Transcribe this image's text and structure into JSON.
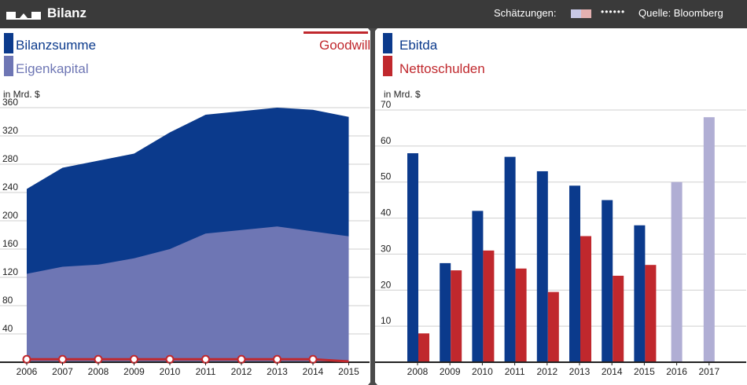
{
  "header": {
    "title": "Bilanz",
    "estimates_label": "Schätzungen:",
    "estimate_colors": [
      "#c8c8e6",
      "#e3b0b0"
    ],
    "dots": "••••••",
    "source": "Quelle: Bloomberg"
  },
  "colors": {
    "dark_blue": "#0b3a8c",
    "light_blue": "#6e76b4",
    "red": "#c0282d",
    "estimate_blue": "#b0aed4"
  },
  "left": {
    "legend": {
      "bilanzsumme": "Bilanzsumme",
      "eigenkapital": "Eigenkapital",
      "goodwill": "Goodwill"
    },
    "unit": "in Mrd. $"
  },
  "right": {
    "legend": {
      "ebitda": "Ebitda",
      "nettoschulden": "Nettoschulden"
    },
    "unit": "in Mrd. $"
  },
  "chart_data": [
    {
      "type": "area",
      "x": [
        "2006",
        "2007",
        "2008",
        "2009",
        "2010",
        "2011",
        "2012",
        "2013",
        "2014",
        "2015"
      ],
      "series": [
        {
          "name": "Bilanzsumme",
          "values": [
            245,
            275,
            285,
            295,
            325,
            350,
            355,
            360,
            357,
            347
          ]
        },
        {
          "name": "Eigenkapital",
          "values": [
            125,
            135,
            138,
            147,
            160,
            182,
            187,
            192,
            185,
            178
          ]
        },
        {
          "name": "Goodwill",
          "values": [
            3,
            3,
            3,
            3,
            3,
            3,
            3,
            3,
            3,
            0
          ]
        }
      ],
      "yticks": [
        40,
        80,
        120,
        160,
        200,
        240,
        280,
        320,
        360
      ],
      "ylim": [
        0,
        370
      ],
      "ylabel": "in Mrd. $"
    },
    {
      "type": "bar",
      "categories": [
        "2008",
        "2009",
        "2010",
        "2011",
        "2012",
        "2013",
        "2014",
        "2015",
        "2016",
        "2017"
      ],
      "series": [
        {
          "name": "Ebitda",
          "values": [
            58,
            27.5,
            42,
            57,
            53,
            49,
            45,
            38,
            50,
            68
          ],
          "estimate_from": "2016"
        },
        {
          "name": "Nettoschulden",
          "values": [
            8,
            25.5,
            31,
            26,
            19.5,
            35,
            24,
            27,
            null,
            null
          ]
        }
      ],
      "yticks": [
        10,
        20,
        30,
        40,
        50,
        60,
        70
      ],
      "ylim": [
        0,
        72
      ],
      "ylabel": "in Mrd. $"
    }
  ]
}
